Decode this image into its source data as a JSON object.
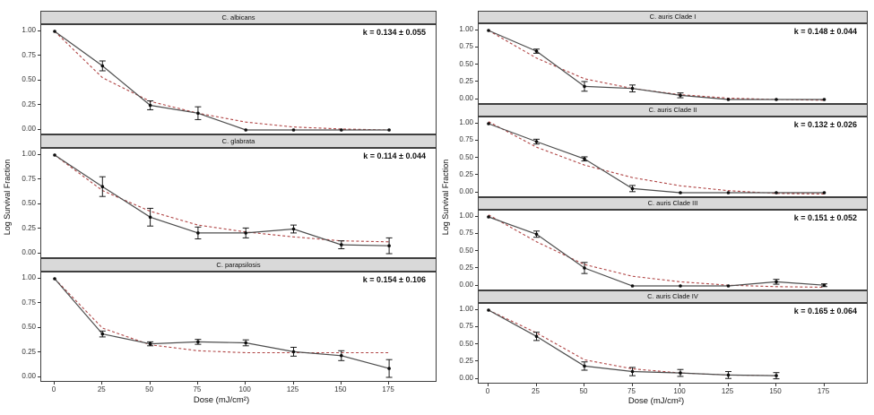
{
  "chart_data": {
    "type": "line",
    "xlabel": "Dose (mJ/cm²)",
    "ylabel": "Log Survival Fraction",
    "x_ticks": [
      0,
      25,
      50,
      75,
      100,
      125,
      150,
      175
    ],
    "y_ticks": [
      "1.00",
      "0.75",
      "0.50",
      "0.25",
      "0.00"
    ],
    "y_tick_values": [
      1.0,
      0.75,
      0.5,
      0.25,
      0.0
    ],
    "xlim": [
      0,
      190
    ],
    "ylim": [
      0,
      1
    ],
    "grid": false,
    "legend": "none",
    "colors": {
      "data_line": "#4d4d4d",
      "fit_line": "#b04545",
      "point": "#0d0d0d",
      "error_bar": "#1a1a1a",
      "header_bg": "#d9d9d9",
      "panel_border": "#3f3f3f"
    },
    "columns": [
      {
        "panels": [
          {
            "title": "C. albicans",
            "k_label": "k =  0.134 ± 0.055",
            "doses": [
              0,
              25,
              50,
              75,
              100,
              125,
              150,
              175
            ],
            "survival": [
              1.0,
              0.65,
              0.25,
              0.17,
              0.0,
              0.0,
              0.0,
              0.0
            ],
            "errors": [
              0.01,
              0.05,
              0.045,
              0.065,
              0,
              0,
              0,
              0
            ],
            "fit": [
              1.0,
              0.53,
              0.29,
              0.17,
              0.08,
              0.03,
              0.01,
              0.0
            ]
          },
          {
            "title": "C. glabrata",
            "k_label": "k =  0.114 ± 0.044",
            "doses": [
              0,
              25,
              50,
              75,
              100,
              125,
              150,
              175
            ],
            "survival": [
              1.0,
              0.68,
              0.37,
              0.21,
              0.21,
              0.25,
              0.09,
              0.08
            ],
            "errors": [
              0.005,
              0.1,
              0.09,
              0.06,
              0.05,
              0.04,
              0.04,
              0.08
            ],
            "fit": [
              1.0,
              0.64,
              0.43,
              0.29,
              0.22,
              0.17,
              0.13,
              0.12
            ]
          },
          {
            "title": "C. parapsilosis",
            "k_label": "k =  0.154 ± 0.106",
            "doses": [
              0,
              25,
              50,
              75,
              100,
              125,
              150,
              175
            ],
            "survival": [
              1.0,
              0.44,
              0.34,
              0.36,
              0.35,
              0.26,
              0.22,
              0.09
            ],
            "errors": [
              0.005,
              0.03,
              0.02,
              0.025,
              0.03,
              0.045,
              0.05,
              0.09
            ],
            "fit": [
              1.0,
              0.5,
              0.33,
              0.27,
              0.25,
              0.25,
              0.25,
              0.25
            ]
          }
        ]
      },
      {
        "panels": [
          {
            "title": "C. auris Clade I",
            "k_label": "k =  0.148 ± 0.044",
            "doses": [
              0,
              25,
              50,
              75,
              100,
              125,
              150,
              175
            ],
            "survival": [
              1.0,
              0.7,
              0.19,
              0.16,
              0.06,
              0.0,
              0.0,
              0.0
            ],
            "errors": [
              0.01,
              0.03,
              0.07,
              0.05,
              0.035,
              0,
              0,
              0
            ],
            "fit": [
              1.0,
              0.6,
              0.3,
              0.16,
              0.07,
              0.02,
              0.0,
              -0.01
            ]
          },
          {
            "title": "C. auris Clade II",
            "k_label": "k =  0.132 ± 0.026",
            "doses": [
              0,
              25,
              50,
              75,
              100,
              125,
              150,
              175
            ],
            "survival": [
              1.0,
              0.74,
              0.49,
              0.06,
              0.0,
              0.0,
              0.0,
              0.0
            ],
            "errors": [
              0.01,
              0.035,
              0.03,
              0.045,
              0,
              0,
              0,
              0
            ],
            "fit": [
              1.03,
              0.66,
              0.4,
              0.22,
              0.1,
              0.03,
              -0.01,
              -0.02
            ]
          },
          {
            "title": "C. auris Clade III",
            "k_label": "k =  0.151 ± 0.052",
            "doses": [
              0,
              25,
              50,
              75,
              100,
              125,
              150,
              175
            ],
            "survival": [
              1.0,
              0.75,
              0.26,
              0.0,
              0.0,
              0.0,
              0.06,
              0.01
            ],
            "errors": [
              0.01,
              0.045,
              0.08,
              0,
              0,
              0,
              0.035,
              0.02
            ],
            "fit": [
              1.03,
              0.64,
              0.31,
              0.14,
              0.06,
              0.01,
              -0.01,
              -0.02
            ]
          },
          {
            "title": "C. auris Clade IV",
            "k_label": "k =  0.165 ± 0.064",
            "doses": [
              0,
              25,
              50,
              75,
              100,
              125,
              150
            ],
            "survival": [
              1.0,
              0.62,
              0.19,
              0.11,
              0.09,
              0.06,
              0.05
            ],
            "errors": [
              0.005,
              0.06,
              0.06,
              0.06,
              0.05,
              0.05,
              0.045
            ],
            "fit": [
              1.0,
              0.67,
              0.28,
              0.15,
              0.09,
              0.06,
              0.05
            ]
          }
        ]
      }
    ]
  }
}
